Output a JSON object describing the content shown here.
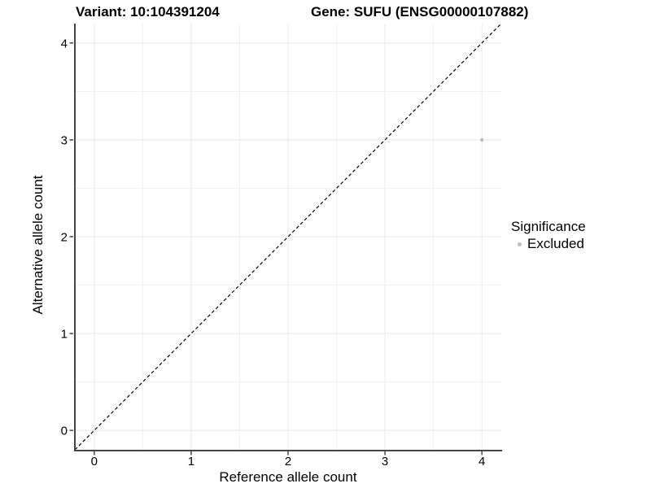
{
  "chart_data": {
    "type": "scatter",
    "title_left": "Variant: 10:104391204",
    "title_right": "Gene: SUFU (ENSG00000107882)",
    "xlabel": "Reference allele count",
    "ylabel": "Alternative allele count",
    "xlim": [
      -0.2,
      4.2
    ],
    "ylim": [
      -0.2,
      4.2
    ],
    "xticks": [
      0,
      1,
      2,
      3,
      4
    ],
    "yticks": [
      0,
      1,
      2,
      3,
      4
    ],
    "xtick_labels": [
      "0",
      "1",
      "2",
      "3",
      "4"
    ],
    "ytick_labels": [
      "0",
      "1",
      "2",
      "3",
      "4"
    ],
    "minor_xticks": [
      0.5,
      1.5,
      2.5,
      3.5
    ],
    "minor_yticks": [
      0.5,
      1.5,
      2.5,
      3.5
    ],
    "grid": {
      "major": true,
      "minor": true
    },
    "reference_line": {
      "name": "identity-line",
      "x1": -0.2,
      "y1": -0.2,
      "x2": 4.2,
      "y2": 4.2,
      "style": "dashed",
      "color": "#000000"
    },
    "series": [
      {
        "name": "Excluded",
        "color": "#bdbdbd",
        "point_radius": 2.2,
        "points": [
          {
            "x": 4,
            "y": 3
          }
        ]
      }
    ],
    "legend": {
      "title": "Significance",
      "position": "right",
      "entries": [
        {
          "label": "Excluded",
          "color": "#bdbdbd"
        }
      ]
    },
    "colors": {
      "axis": "#454545",
      "grid_major": "#e8e8e8",
      "grid_minor": "#f1f1f1",
      "text": "#000000",
      "background": "#ffffff"
    }
  }
}
